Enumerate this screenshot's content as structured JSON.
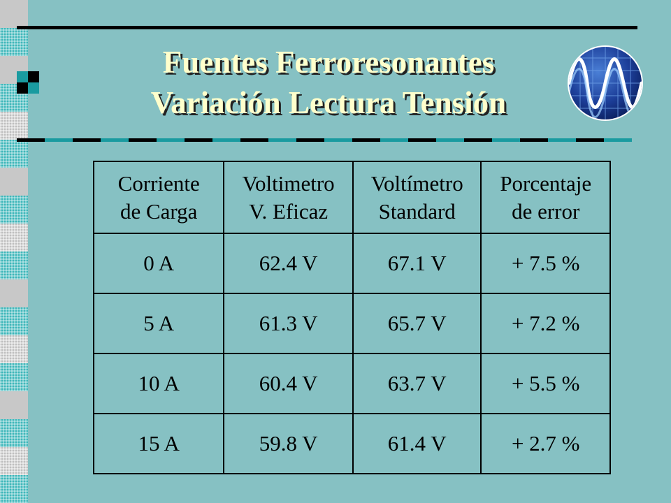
{
  "slide": {
    "title_line1": "Fuentes Ferroresonantes",
    "title_line2": "Variación Lectura Tensión",
    "logo_icon": "oscilloscope-sine-wave-globe-icon",
    "colors": {
      "background": "#86c1c3",
      "title_text": "#ffffcc",
      "accent_teal": "#1a9ba0"
    }
  },
  "table": {
    "headers": [
      {
        "line1": "Corriente",
        "line2": "de Carga"
      },
      {
        "line1": "Voltimetro",
        "line2": "V. Eficaz"
      },
      {
        "line1": "Voltímetro",
        "line2": "Standard"
      },
      {
        "line1": "Porcentaje",
        "line2": "de error"
      }
    ],
    "rows": [
      [
        "0 A",
        "62.4 V",
        "67.1 V",
        "+ 7.5 %"
      ],
      [
        "5 A",
        "61.3 V",
        "65.7 V",
        "+ 7.2 %"
      ],
      [
        "10 A",
        "60.4 V",
        "63.7 V",
        "+ 5.5 %"
      ],
      [
        "15 A",
        "59.8 V",
        "61.4 V",
        "+ 2.7 %"
      ]
    ]
  }
}
